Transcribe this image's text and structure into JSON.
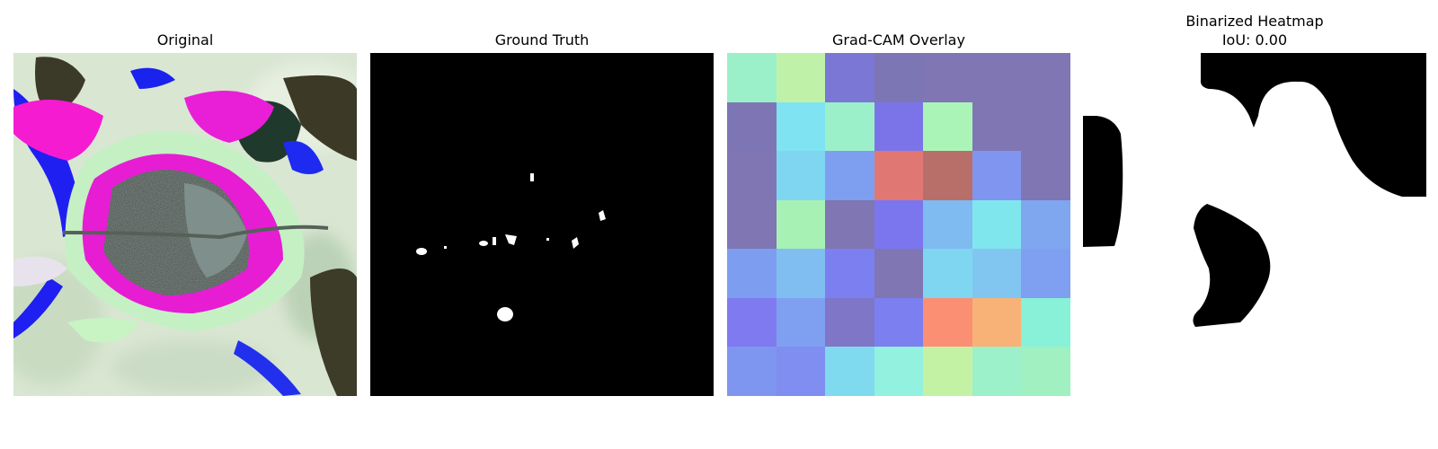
{
  "panels": {
    "original": {
      "title": "Original"
    },
    "ground_truth": {
      "title": "Ground Truth"
    },
    "gradcam": {
      "title": "Grad-CAM Overlay",
      "cell_colors": [
        [
          "#9cf0c9",
          "#bff2a8",
          "#7b77d4",
          "#7c76b5",
          "#7f76b3",
          "#7f76b3",
          "#7f76b3"
        ],
        [
          "#7e76b4",
          "#7fe3f2",
          "#9cf0c9",
          "#7a74e8",
          "#abf4b8",
          "#7f76b3",
          "#7f76b3"
        ],
        [
          "#7f76b3",
          "#7fd6f0",
          "#7e9ff0",
          "#e07773",
          "#b86f6a",
          "#7f95f0",
          "#7f76b3"
        ],
        [
          "#7f76b3",
          "#a7f1b5",
          "#7f76b3",
          "#7c76ee",
          "#7fbaf0",
          "#80e6ee",
          "#7fa7f0"
        ],
        [
          "#7d9ef0",
          "#80bdf0",
          "#7b7ff0",
          "#7f76b3",
          "#7fd6f0",
          "#80c6f0",
          "#7fa0f0"
        ],
        [
          "#7f7af0",
          "#7fa0f0",
          "#7f76c7",
          "#7c7ff0",
          "#fb8f73",
          "#f8b278",
          "#88f1d8"
        ],
        [
          "#7f96f0",
          "#7f8ef0",
          "#7fdaf0",
          "#92f2df",
          "#c4f2a4",
          "#9cf0ca",
          "#a0f0c2"
        ]
      ]
    },
    "binarized": {
      "title": "Binarized Heatmap\nIoU: 0.00"
    }
  }
}
